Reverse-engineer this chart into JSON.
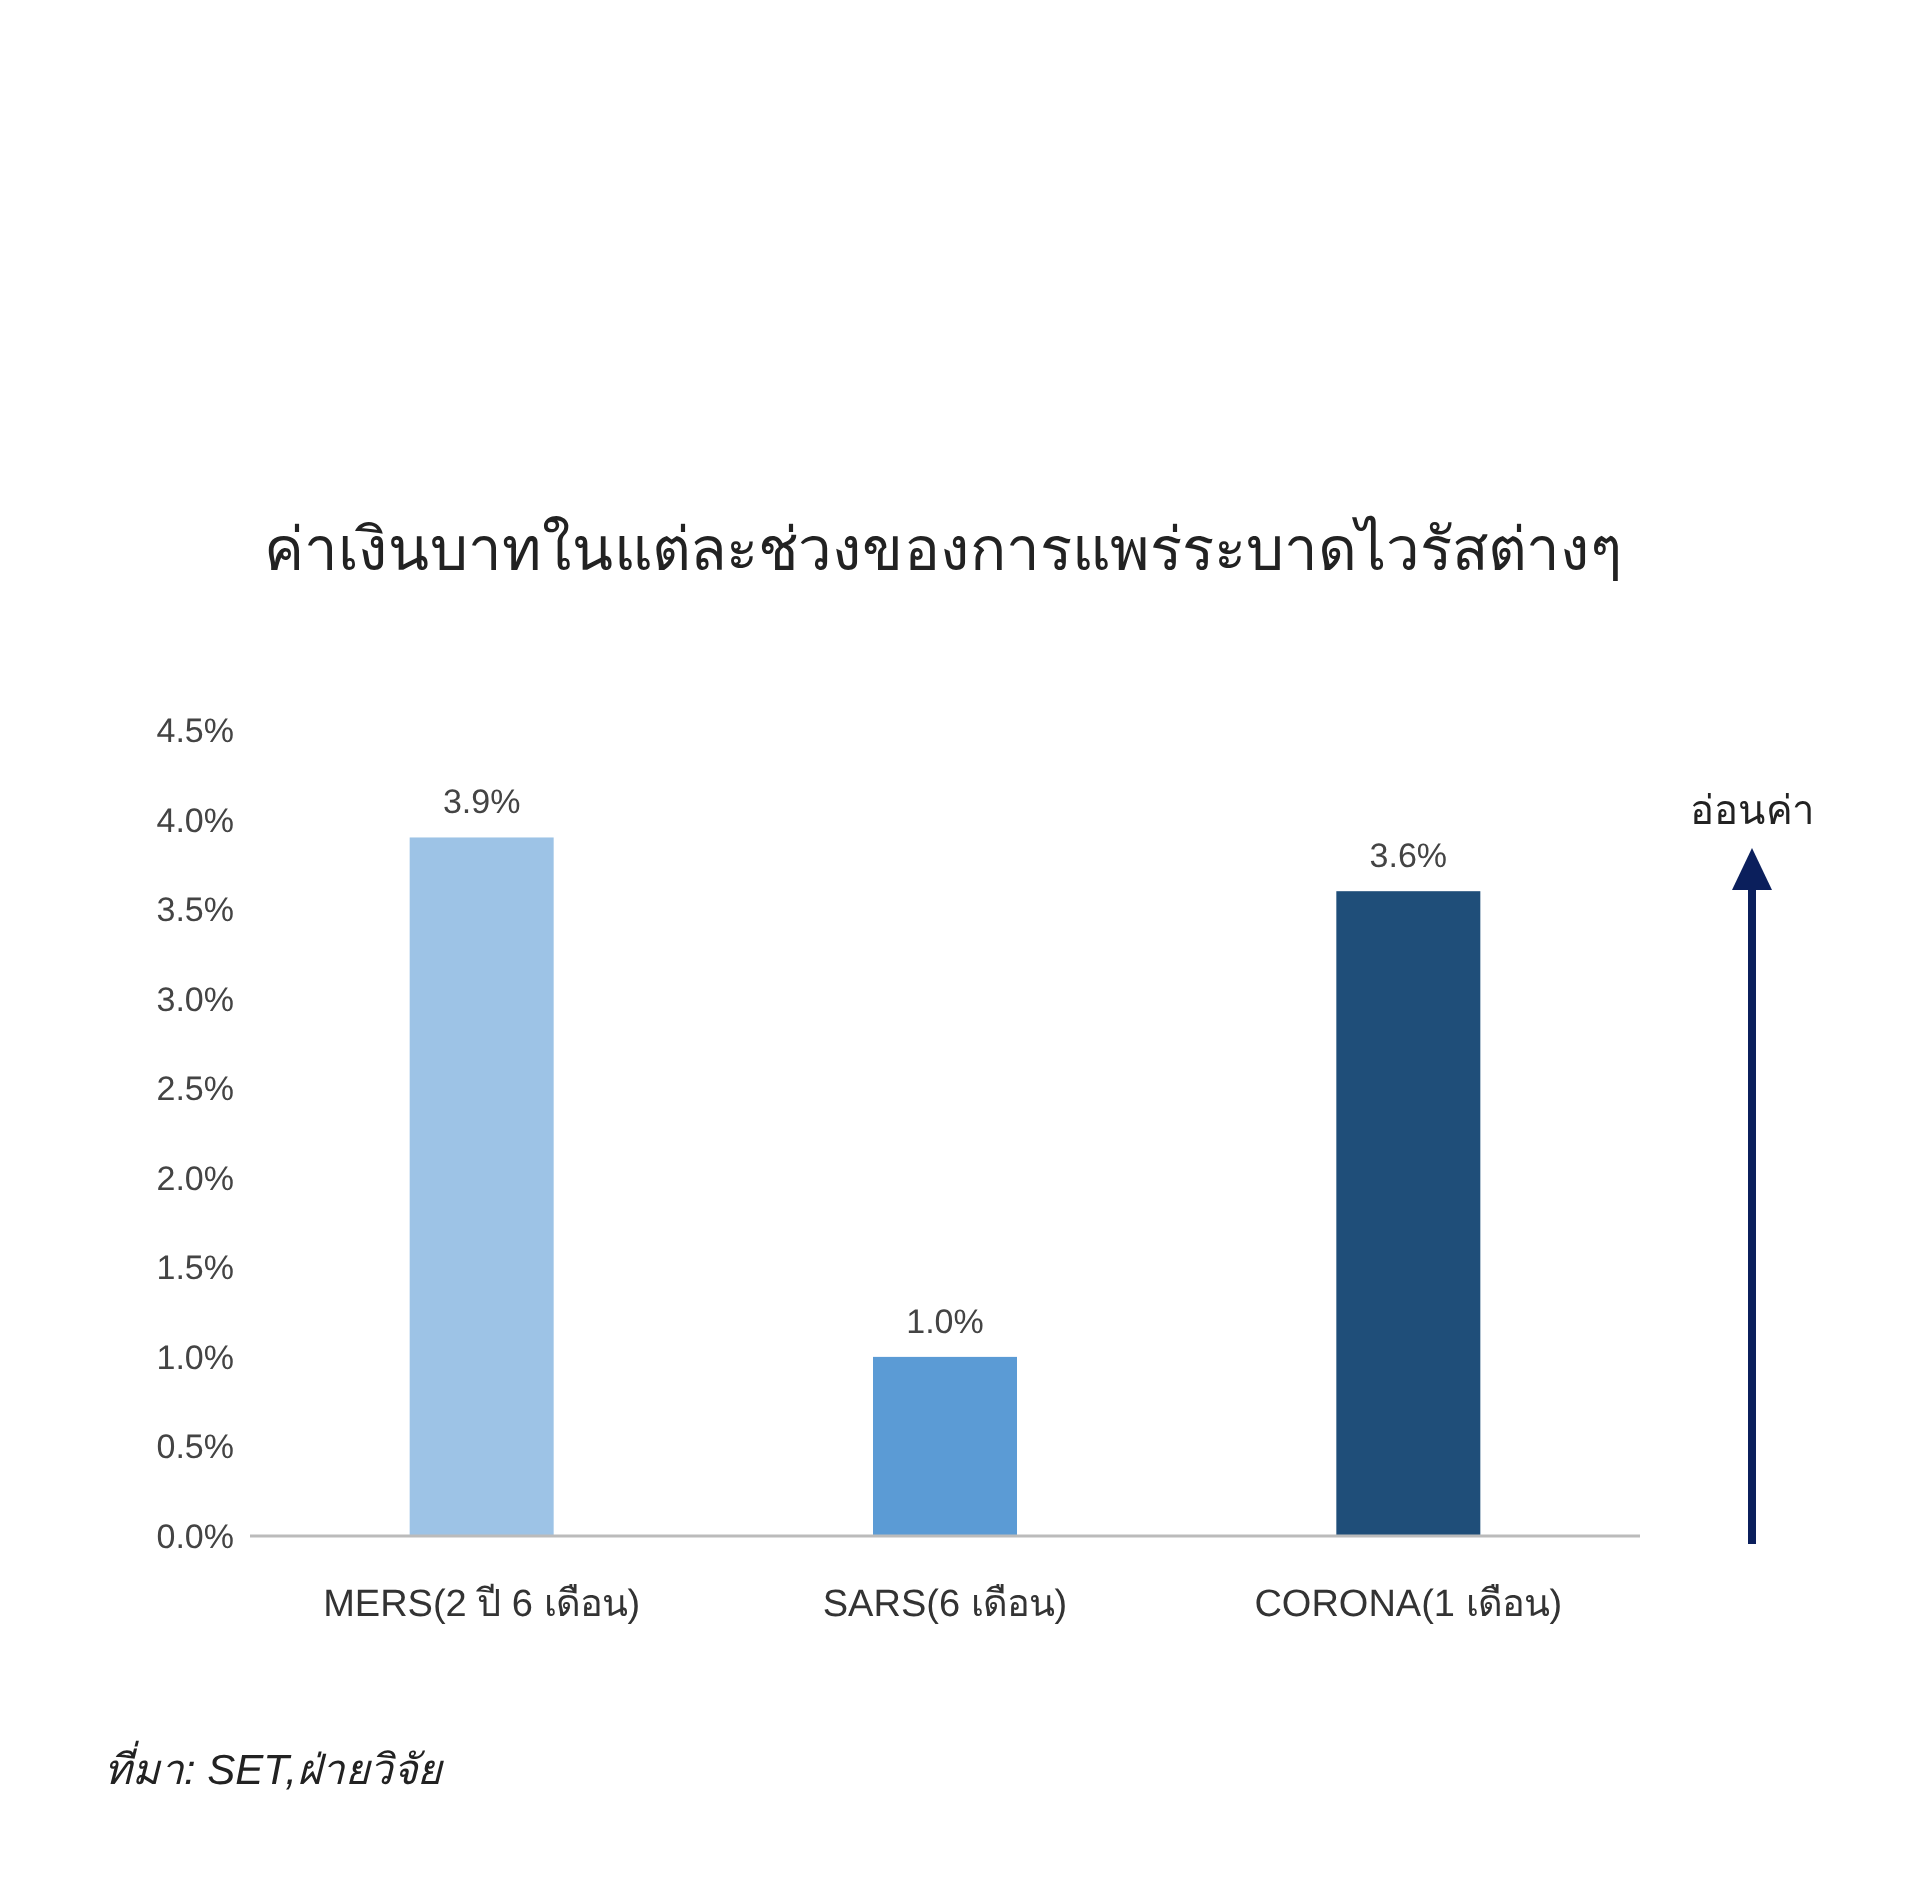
{
  "chart_data": {
    "type": "bar",
    "title": "ค่าเงินบาทในแต่ละช่วงของการแพร่ระบาดไวรัสต่างๆ",
    "categories": [
      "MERS(2 ปี 6 เดือน)",
      "SARS(6 เดือน)",
      "CORONA(1 เดือน)"
    ],
    "values": [
      3.9,
      1.0,
      3.6
    ],
    "colors": [
      "#9dc3e6",
      "#5b9bd5",
      "#1f4e79"
    ],
    "value_labels": [
      "3.9%",
      "1.0%",
      "3.6%"
    ],
    "ylim": [
      0,
      4.5
    ],
    "yticks": [
      {
        "value": 0,
        "label": "0.0%"
      },
      {
        "value": 0.5,
        "label": "0.5%"
      },
      {
        "value": 1,
        "label": "1.0%"
      },
      {
        "value": 1.5,
        "label": "1.5%"
      },
      {
        "value": 2,
        "label": "2.0%"
      },
      {
        "value": 2.5,
        "label": "2.5%"
      },
      {
        "value": 3,
        "label": "3.0%"
      },
      {
        "value": 3.5,
        "label": "3.5%"
      },
      {
        "value": 4,
        "label": "4.0%"
      },
      {
        "value": 4.5,
        "label": "4.5%"
      }
    ],
    "annotations": [
      "อ่อนค่า",
      "ที่มา: SET,ฝ่ายวิจัย"
    ]
  }
}
